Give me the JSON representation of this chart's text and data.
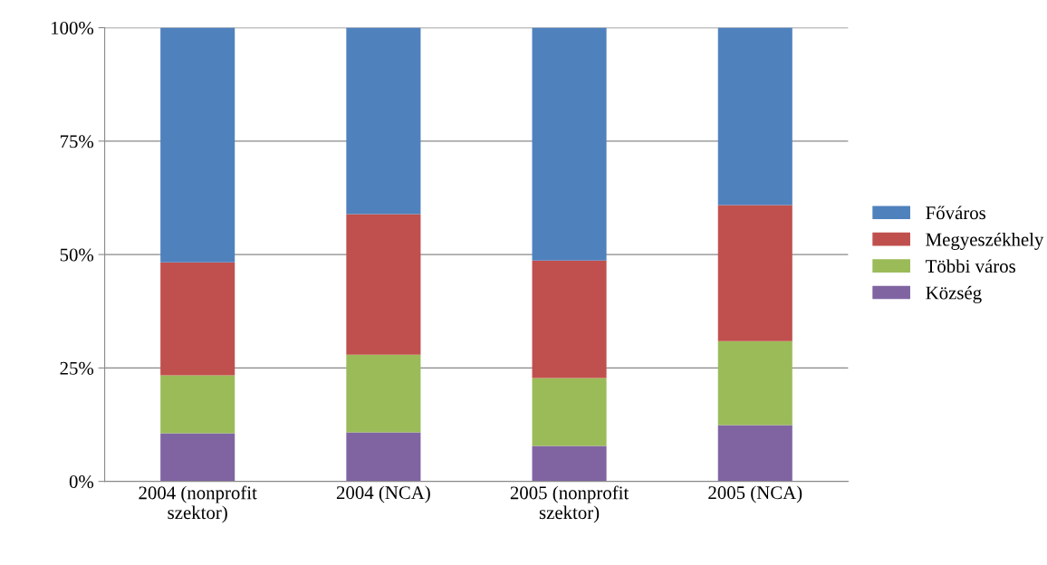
{
  "chart_data": {
    "type": "bar",
    "stacked": true,
    "categories": [
      "2004 (nonprofit\nszektor)",
      "2004 (NCA)",
      "2005 (nonprofit\nszektor)",
      "2005 (NCA)"
    ],
    "series": [
      {
        "name": "Község",
        "color": "#8064a2",
        "values": [
          10.6,
          10.8,
          7.8,
          12.4
        ]
      },
      {
        "name": "Többi város",
        "color": "#9bbb59",
        "values": [
          12.8,
          17.1,
          15.0,
          18.5
        ]
      },
      {
        "name": "Megyeszékhely",
        "color": "#c0504d",
        "values": [
          24.9,
          31.0,
          25.9,
          30.0
        ]
      },
      {
        "name": "Főváros",
        "color": "#4f81bd",
        "values": [
          51.7,
          41.1,
          51.3,
          39.1
        ]
      }
    ],
    "ylim": [
      0,
      100
    ],
    "yticks": [
      {
        "value": 0,
        "label": "0%"
      },
      {
        "value": 25,
        "label": "25%"
      },
      {
        "value": 50,
        "label": "50%"
      },
      {
        "value": 75,
        "label": "75%"
      },
      {
        "value": 100,
        "label": "100%"
      }
    ],
    "grid": "y",
    "legend": "right"
  }
}
